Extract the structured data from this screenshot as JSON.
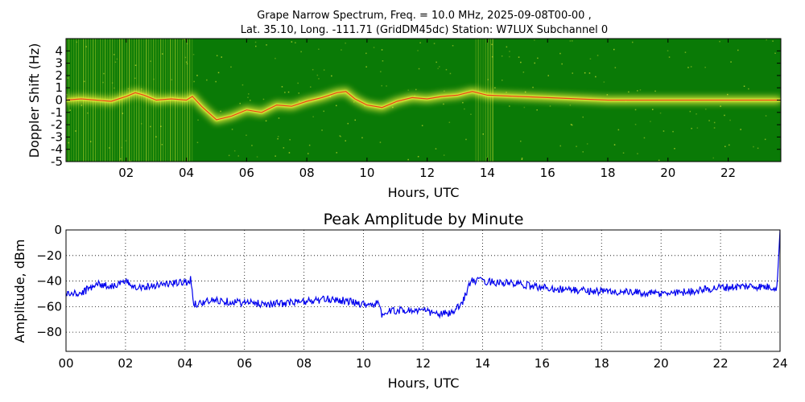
{
  "header": {
    "title_line1": "Grape Narrow Spectrum, Freq. = 10.0 MHz, 2025-09-08T00-00 ,",
    "title_line2": "Lat.  35.10, Long. -111.71 (GridDM45dc) Station: W7LUX Subchannel 0"
  },
  "colors": {
    "spectrogram_background": "#0a7a06",
    "signal_core": "#e81a10",
    "signal_halo": "#f3f13a",
    "amplitude_line": "#0000ee"
  },
  "chart_data": [
    {
      "type": "heatmap",
      "title": "",
      "xlabel": "Hours, UTC",
      "ylabel": "Doppler Shift (Hz)",
      "xlim": [
        0,
        23.75
      ],
      "ylim": [
        -5,
        5
      ],
      "xticks": [
        "02",
        "04",
        "06",
        "08",
        "10",
        "12",
        "14",
        "16",
        "18",
        "20",
        "22"
      ],
      "yticks": [
        "4",
        "3",
        "2",
        "1",
        "0",
        "-1",
        "-2",
        "-3",
        "-4",
        "-5"
      ],
      "ridge": {
        "x": [
          0,
          0.5,
          1,
          1.5,
          2,
          2.3,
          2.6,
          3,
          3.5,
          4,
          4.2,
          4.5,
          5,
          5.5,
          6,
          6.5,
          7,
          7.5,
          8,
          8.5,
          9,
          9.3,
          9.6,
          10,
          10.5,
          11,
          11.5,
          12,
          12.5,
          13,
          13.5,
          14,
          15,
          16,
          17,
          18,
          19,
          20,
          21,
          22,
          23,
          23.75
        ],
        "doppler": [
          0,
          0.1,
          0,
          -0.1,
          0.3,
          0.6,
          0.4,
          0,
          0.1,
          0,
          0.3,
          -0.5,
          -1.6,
          -1.3,
          -0.8,
          -1.0,
          -0.4,
          -0.5,
          -0.1,
          0.2,
          0.6,
          0.7,
          0.1,
          -0.4,
          -0.6,
          -0.1,
          0.2,
          0.1,
          0.3,
          0.4,
          0.7,
          0.4,
          0.3,
          0.2,
          0.1,
          0,
          0,
          0,
          0,
          0,
          0,
          0
        ]
      },
      "noise_blocks_hours": [
        [
          0,
          4.2
        ],
        [
          13.6,
          14.2
        ]
      ]
    },
    {
      "type": "line",
      "title": "Peak Amplitude by Minute",
      "xlabel": "Hours, UTC",
      "ylabel": "Amplitude, dBm",
      "xlim": [
        0,
        24
      ],
      "ylim": [
        -95,
        0
      ],
      "grid": true,
      "x_tick_labels": [
        "00",
        "02",
        "04",
        "06",
        "08",
        "10",
        "12",
        "14",
        "16",
        "18",
        "20",
        "22",
        "24"
      ],
      "y_tick_labels": [
        "0",
        "−20",
        "−40",
        "−60",
        "−80"
      ],
      "series": [
        {
          "x": [
            0,
            0.5,
            1,
            1.5,
            2,
            2.5,
            3,
            3.5,
            4,
            4.2,
            4.3,
            5,
            6,
            7,
            8,
            9,
            10,
            10.5,
            10.6,
            11,
            12,
            12.5,
            13,
            13.3,
            13.6,
            14,
            15,
            16,
            17,
            18,
            19,
            20,
            21,
            22,
            23,
            23.9,
            24
          ],
          "y": [
            -50,
            -50,
            -42,
            -44,
            -41,
            -45,
            -43,
            -42,
            -41,
            -39,
            -58,
            -55,
            -57,
            -58,
            -56,
            -54,
            -58,
            -58,
            -66,
            -63,
            -63,
            -66,
            -65,
            -58,
            -40,
            -40,
            -42,
            -45,
            -47,
            -48,
            -49,
            -50,
            -48,
            -45,
            -44,
            -45,
            0
          ]
        }
      ]
    }
  ]
}
